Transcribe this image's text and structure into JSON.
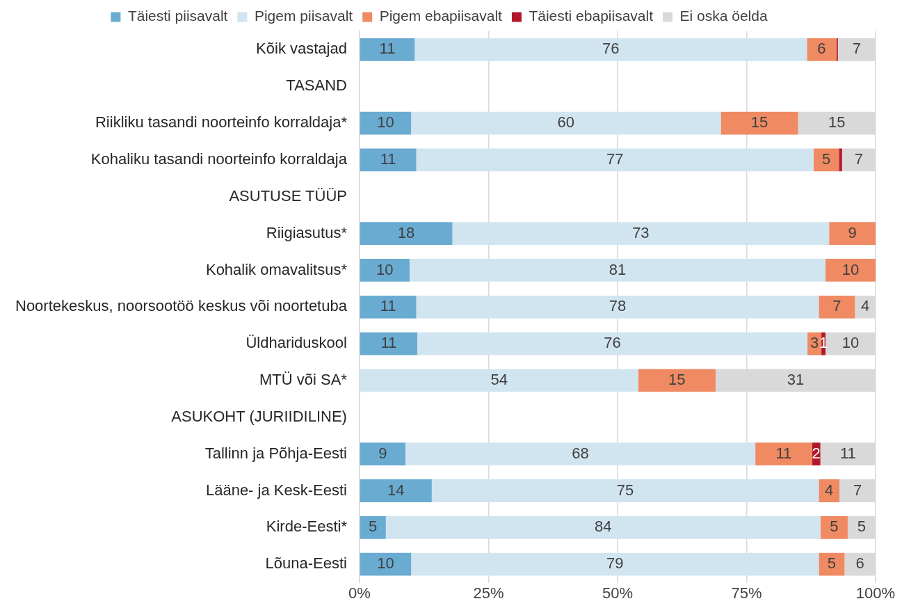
{
  "chart_data": {
    "type": "bar",
    "orientation": "horizontal",
    "stacked": true,
    "categories": [
      "Kõik vastajad",
      "TASAND",
      "Riikliku tasandi noorteinfo korraldaja*",
      "Kohaliku tasandi noorteinfo korraldaja",
      "ASUTUSE TÜÜP",
      "Riigiasutus*",
      "Kohalik omavalitsus*",
      "Noortekeskus, noorsootöö keskus või noortetuba",
      "Üldhariduskool",
      "MTÜ või SA*",
      "ASUKOHT (JURIIDILINE)",
      "Tallinn ja Põhja-Eesti",
      "Lääne- ja Kesk-Eesti",
      "Kirde-Eesti*",
      "Lõuna-Eesti"
    ],
    "series": [
      {
        "name": "Täiesti piisavalt",
        "color": "#6aabd2",
        "values": [
          10.7,
          null,
          10,
          11,
          null,
          18,
          9.7,
          11,
          11.2,
          null,
          null,
          8.9,
          14,
          5.1,
          10
        ],
        "value_labels": [
          "11",
          null,
          "10",
          "11",
          null,
          "18",
          "10",
          "11",
          "11",
          null,
          null,
          "9",
          "14",
          "5",
          "10"
        ]
      },
      {
        "name": "Pigem piisavalt",
        "color": "#d1e5f0",
        "values": [
          76,
          null,
          60,
          77,
          null,
          73,
          80.6,
          78,
          75.6,
          54,
          null,
          67.8,
          75,
          84.2,
          79
        ],
        "value_labels": [
          "76",
          null,
          "60",
          "77",
          null,
          "73",
          "81",
          "78",
          "76",
          "54",
          null,
          "68",
          "75",
          "84",
          "79"
        ]
      },
      {
        "name": "Pigem ebapiisavalt",
        "color": "#ef8a62",
        "values": [
          5.7,
          null,
          15,
          4.9,
          null,
          9,
          9.7,
          7,
          2.7,
          15,
          null,
          11,
          4,
          5.3,
          5
        ],
        "value_labels": [
          "6",
          null,
          "15",
          "5",
          null,
          "9",
          "10",
          "7",
          "3",
          "15",
          null,
          "11",
          "4",
          "5",
          "5"
        ]
      },
      {
        "name": "Täiesti ebapiisavalt",
        "color": "#b2182b",
        "values": [
          0.3,
          null,
          null,
          0.6,
          null,
          null,
          null,
          null,
          0.8,
          null,
          null,
          1.6,
          null,
          null,
          null
        ],
        "value_labels": [
          null,
          null,
          null,
          null,
          null,
          null,
          null,
          null,
          "1",
          null,
          null,
          "2",
          null,
          null,
          null
        ]
      },
      {
        "name": "Ei oska öelda",
        "color": "#d9d9d9",
        "values": [
          7.3,
          null,
          15,
          6.5,
          null,
          null,
          null,
          4,
          9.7,
          31,
          null,
          10.7,
          7,
          5.4,
          6
        ],
        "value_labels": [
          "7",
          null,
          "15",
          "7",
          null,
          null,
          null,
          "4",
          "10",
          "31",
          null,
          "11",
          "7",
          "5",
          "6"
        ]
      }
    ],
    "xlim": [
      0,
      100
    ],
    "xticks": [
      {
        "value": 0,
        "label": "0%"
      },
      {
        "value": 25,
        "label": "25%"
      },
      {
        "value": 50,
        "label": "50%"
      },
      {
        "value": 75,
        "label": "75%"
      },
      {
        "value": 100,
        "label": "100%"
      }
    ],
    "grid": "x",
    "legend": "top"
  }
}
